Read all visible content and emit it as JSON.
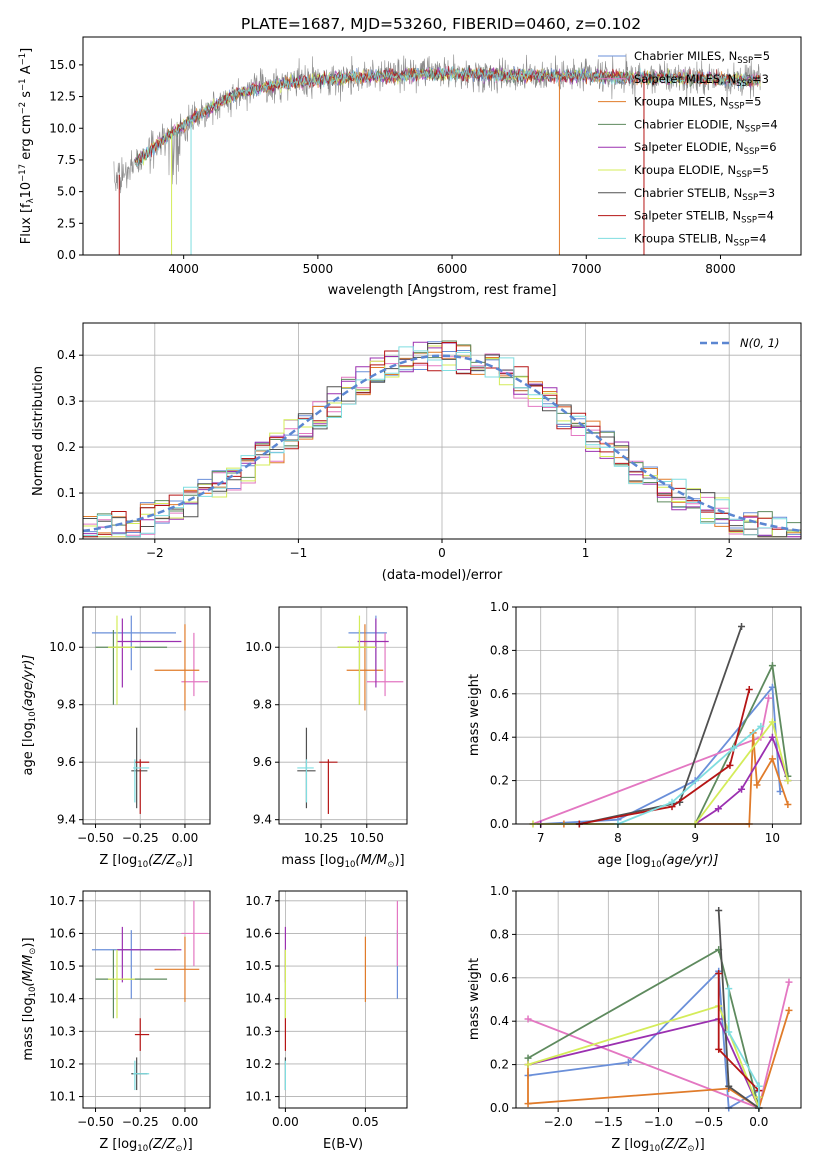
{
  "title": "PLATE=1687, MJD=53260, FIBERID=0460, z=0.102",
  "colors": {
    "chabrier_miles": "#6a8fd9",
    "salpeter_miles": "#e377c2",
    "kroupa_miles": "#e07b2a",
    "chabrier_elodie": "#5e8a5e",
    "salpeter_elodie": "#9b30b0",
    "kroupa_elodie": "#d4ec5a",
    "chabrier_stelib": "#505050",
    "salpeter_stelib": "#b51515",
    "kroupa_stelib": "#7fdde0",
    "normal": "#5b86d1",
    "grid": "#b0b0b0"
  },
  "legend": [
    {
      "key": "chabrier_miles",
      "label": "Chabrier MILES, N",
      "sub": "SSP",
      "tail": "=5"
    },
    {
      "key": "salpeter_miles",
      "label": "Salpeter MILES, N",
      "sub": "SSP",
      "tail": "=3"
    },
    {
      "key": "kroupa_miles",
      "label": "Kroupa MILES, N",
      "sub": "SSP",
      "tail": "=5"
    },
    {
      "key": "chabrier_elodie",
      "label": "Chabrier ELODIE, N",
      "sub": "SSP",
      "tail": "=4"
    },
    {
      "key": "salpeter_elodie",
      "label": "Salpeter ELODIE, N",
      "sub": "SSP",
      "tail": "=6"
    },
    {
      "key": "kroupa_elodie",
      "label": "Kroupa ELODIE, N",
      "sub": "SSP",
      "tail": "=5"
    },
    {
      "key": "chabrier_stelib",
      "label": "Chabrier STELIB, N",
      "sub": "SSP",
      "tail": "=3"
    },
    {
      "key": "salpeter_stelib",
      "label": "Salpeter STELIB, N",
      "sub": "SSP",
      "tail": "=4"
    },
    {
      "key": "kroupa_stelib",
      "label": "Kroupa STELIB, N",
      "sub": "SSP",
      "tail": "=4"
    }
  ],
  "chart_data": [
    {
      "id": "spectrum",
      "type": "line",
      "xlabel": "wavelength [Angstrom, rest frame]",
      "ylabel_main": "Flux [f",
      "ylabel_sub": "λ",
      "ylabel_rest": "10",
      "ylabel_exp": "−17",
      "ylabel_unit": " erg cm",
      "ylabel_unit_exp": "−2",
      "ylabel_s": " s",
      "ylabel_s_exp": "−1",
      "ylabel_A": " A",
      "ylabel_A_exp": "−1",
      "ylabel_close": "]",
      "xlim": [
        3250,
        8600
      ],
      "ylim": [
        0,
        17.2
      ],
      "xticks": [
        4000,
        5000,
        6000,
        7000,
        8000
      ],
      "yticks": [
        0.0,
        2.5,
        5.0,
        7.5,
        10.0,
        12.5,
        15.0
      ],
      "ytick_labels": [
        "0.0",
        "2.5",
        "5.0",
        "7.5",
        "10.0",
        "12.5",
        "15.0"
      ],
      "continuum": [
        [
          3480,
          6.0
        ],
        [
          3700,
          7.8
        ],
        [
          3900,
          9.5
        ],
        [
          4100,
          11.0
        ],
        [
          4400,
          12.8
        ],
        [
          4800,
          13.6
        ],
        [
          5200,
          14.0
        ],
        [
          5600,
          14.2
        ],
        [
          6000,
          14.3
        ],
        [
          6500,
          14.2
        ],
        [
          7000,
          14.1
        ],
        [
          7500,
          14.0
        ],
        [
          8000,
          13.9
        ],
        [
          8300,
          13.8
        ]
      ],
      "model_start": 3640,
      "model_end": 8300
    },
    {
      "id": "residuals",
      "type": "histogram",
      "xlabel": "(data-model)/error",
      "ylabel": "Normed distribution",
      "xlim": [
        -2.5,
        2.5
      ],
      "ylim": [
        0,
        0.47
      ],
      "xticks": [
        -2,
        -1,
        0,
        1,
        2
      ],
      "xtick_labels": [
        "−2",
        "−1",
        "0",
        "1",
        "2"
      ],
      "yticks": [
        0.0,
        0.1,
        0.2,
        0.3,
        0.4
      ],
      "ytick_labels": [
        "0.0",
        "0.1",
        "0.2",
        "0.3",
        "0.4"
      ],
      "bin_width": 0.1,
      "normal_label": "N(0, 1)"
    },
    {
      "id": "age_vs_Z",
      "type": "errorbar",
      "xlabel_pre": "Z [log",
      "xlabel_sub": "10",
      "xlabel_post": "(Z/Z",
      "xlabel_end": ")]",
      "ylabel_pre": "age  [log",
      "ylabel_sub": "10",
      "ylabel_post": "(age/yr)]",
      "xlim": [
        -0.57,
        0.14
      ],
      "ylim": [
        9.385,
        10.14
      ],
      "xticks": [
        -0.5,
        -0.25,
        0.0
      ],
      "xtick_labels": [
        "−0.50",
        "−0.25",
        "0.00"
      ],
      "yticks": [
        9.4,
        9.6,
        9.8,
        10.0
      ],
      "ytick_labels": [
        "9.4",
        "9.6",
        "9.8",
        "10.0"
      ]
    },
    {
      "id": "age_vs_mass",
      "type": "errorbar",
      "xlabel_pre": "mass [log",
      "xlabel_sub": "10",
      "xlabel_post": "(M/M",
      "xlabel_end": ")]",
      "xlim": [
        10.02,
        10.72
      ],
      "ylim": [
        9.385,
        10.14
      ],
      "xticks": [
        10.25,
        10.5
      ],
      "xtick_labels": [
        "10.25",
        "10.50"
      ],
      "yticks": [
        9.4,
        9.6,
        9.8,
        10.0
      ],
      "ytick_labels": [
        "9.4",
        "9.6",
        "9.8",
        "10.0"
      ]
    },
    {
      "id": "weight_vs_age",
      "type": "line",
      "xlabel_pre": "age  [log",
      "xlabel_sub": "10",
      "xlabel_post": "(age/yr)]",
      "ylabel": "mass weight",
      "xlim": [
        6.68,
        10.37
      ],
      "ylim": [
        0,
        1.0
      ],
      "xticks": [
        7,
        8,
        9,
        10
      ],
      "xtick_labels": [
        "7",
        "8",
        "9",
        "10"
      ],
      "yticks": [
        0.0,
        0.2,
        0.4,
        0.6,
        0.8,
        1.0
      ],
      "ytick_labels": [
        "0.0",
        "0.2",
        "0.4",
        "0.6",
        "0.8",
        "1.0"
      ],
      "series": [
        {
          "key": "chabrier_miles",
          "points": [
            [
              7.0,
              0.0
            ],
            [
              8.0,
              0.02
            ],
            [
              9.0,
              0.2
            ],
            [
              10.0,
              0.63
            ],
            [
              10.1,
              0.15
            ]
          ]
        },
        {
          "key": "salpeter_miles",
          "points": [
            [
              6.9,
              0.0
            ],
            [
              9.85,
              0.4
            ],
            [
              9.95,
              0.58
            ]
          ]
        },
        {
          "key": "kroupa_miles",
          "points": [
            [
              7.3,
              0.0
            ],
            [
              9.7,
              0.0
            ],
            [
              9.75,
              0.42
            ],
            [
              9.8,
              0.18
            ],
            [
              10.0,
              0.3
            ],
            [
              10.2,
              0.09
            ]
          ]
        },
        {
          "key": "chabrier_elodie",
          "points": [
            [
              7.0,
              0.0
            ],
            [
              9.0,
              0.0
            ],
            [
              10.0,
              0.73
            ],
            [
              10.2,
              0.22
            ]
          ]
        },
        {
          "key": "salpeter_elodie",
          "points": [
            [
              7.0,
              0.0
            ],
            [
              9.0,
              0.0
            ],
            [
              9.3,
              0.07
            ],
            [
              9.6,
              0.16
            ],
            [
              10.0,
              0.4
            ],
            [
              10.2,
              0.2
            ]
          ]
        },
        {
          "key": "kroupa_elodie",
          "points": [
            [
              6.9,
              0.0
            ],
            [
              9.0,
              0.0
            ],
            [
              10.0,
              0.47
            ],
            [
              10.2,
              0.2
            ]
          ]
        },
        {
          "key": "chabrier_stelib",
          "points": [
            [
              7.5,
              0.0
            ],
            [
              8.8,
              0.1
            ],
            [
              9.6,
              0.91
            ]
          ]
        },
        {
          "key": "salpeter_stelib",
          "points": [
            [
              7.5,
              0.0
            ],
            [
              8.7,
              0.08
            ],
            [
              9.45,
              0.27
            ],
            [
              9.7,
              0.62
            ]
          ]
        },
        {
          "key": "kroupa_stelib",
          "points": [
            [
              8.0,
              0.0
            ],
            [
              8.7,
              0.1
            ],
            [
              9.5,
              0.35
            ],
            [
              9.85,
              0.45
            ]
          ]
        }
      ]
    },
    {
      "id": "mass_vs_Z",
      "type": "errorbar",
      "xlabel_pre": "Z [log",
      "xlabel_sub": "10",
      "xlabel_post": "(Z/Z",
      "xlabel_end": ")]",
      "ylabel_pre": "mass [log",
      "ylabel_sub": "10",
      "ylabel_post": "(M/M",
      "ylabel_end": ")]",
      "xlim": [
        -0.57,
        0.14
      ],
      "ylim": [
        10.065,
        10.73
      ],
      "xticks": [
        -0.5,
        -0.25,
        0.0
      ],
      "xtick_labels": [
        "−0.50",
        "−0.25",
        "0.00"
      ],
      "yticks": [
        10.1,
        10.2,
        10.3,
        10.4,
        10.5,
        10.6,
        10.7
      ],
      "ytick_labels": [
        "10.1",
        "10.2",
        "10.3",
        "10.4",
        "10.5",
        "10.6",
        "10.7"
      ]
    },
    {
      "id": "mass_vs_ebv",
      "type": "errorbar",
      "xlabel": "E(B-V)",
      "xlim": [
        -0.004,
        0.076
      ],
      "ylim": [
        10.065,
        10.73
      ],
      "xticks": [
        0.0,
        0.05
      ],
      "xtick_labels": [
        "0.00",
        "0.05"
      ],
      "yticks": [
        10.1,
        10.2,
        10.3,
        10.4,
        10.5,
        10.6,
        10.7
      ],
      "ytick_labels": [
        "10.1",
        "10.2",
        "10.3",
        "10.4",
        "10.5",
        "10.6",
        "10.7"
      ]
    },
    {
      "id": "weight_vs_Z",
      "type": "line",
      "xlabel_pre": "Z [log",
      "xlabel_sub": "10",
      "xlabel_post": "(Z/Z",
      "xlabel_end": ")]",
      "ylabel": "mass weight",
      "xlim": [
        -2.42,
        0.42
      ],
      "ylim": [
        0,
        1.0
      ],
      "xticks": [
        -2.0,
        -1.5,
        -1.0,
        -0.5,
        0.0
      ],
      "xtick_labels": [
        "−2.0",
        "−1.5",
        "−1.0",
        "−0.5",
        "0.0"
      ],
      "yticks": [
        0.0,
        0.2,
        0.4,
        0.6,
        0.8,
        1.0
      ],
      "ytick_labels": [
        "0.0",
        "0.2",
        "0.4",
        "0.6",
        "0.8",
        "1.0"
      ],
      "series": [
        {
          "key": "chabrier_miles",
          "points": [
            [
              -2.3,
              0.15
            ],
            [
              -1.3,
              0.21
            ],
            [
              -0.4,
              0.63
            ],
            [
              -0.3,
              0.0
            ],
            [
              0.0,
              0.08
            ]
          ]
        },
        {
          "key": "salpeter_miles",
          "points": [
            [
              -2.3,
              0.41
            ],
            [
              0.0,
              0.0
            ],
            [
              0.3,
              0.58
            ]
          ]
        },
        {
          "key": "kroupa_miles",
          "points": [
            [
              -2.3,
              0.2
            ],
            [
              -2.3,
              0.02
            ],
            [
              -0.3,
              0.09
            ],
            [
              0.0,
              0.0
            ],
            [
              0.3,
              0.45
            ]
          ]
        },
        {
          "key": "chabrier_elodie",
          "points": [
            [
              -2.3,
              0.23
            ],
            [
              -0.4,
              0.73
            ],
            [
              0.0,
              0.0
            ],
            [
              0.0,
              0.1
            ]
          ]
        },
        {
          "key": "salpeter_elodie",
          "points": [
            [
              -2.3,
              0.2
            ],
            [
              -0.4,
              0.41
            ],
            [
              0.0,
              0.0
            ],
            [
              0.0,
              0.05
            ]
          ]
        },
        {
          "key": "kroupa_elodie",
          "points": [
            [
              -2.3,
              0.2
            ],
            [
              -0.4,
              0.47
            ],
            [
              0.0,
              0.0
            ],
            [
              0.0,
              0.05
            ]
          ]
        },
        {
          "key": "chabrier_stelib",
          "points": [
            [
              -0.4,
              0.91
            ],
            [
              -0.3,
              0.1
            ],
            [
              0.0,
              0.0
            ],
            [
              0.0,
              0.1
            ]
          ]
        },
        {
          "key": "salpeter_stelib",
          "points": [
            [
              -0.4,
              0.62
            ],
            [
              -0.4,
              0.27
            ],
            [
              0.0,
              0.08
            ],
            [
              0.0,
              0.0
            ]
          ]
        },
        {
          "key": "kroupa_stelib",
          "points": [
            [
              -0.3,
              0.55
            ],
            [
              -0.3,
              0.35
            ],
            [
              0.0,
              0.1
            ],
            [
              0.0,
              0.0
            ]
          ]
        }
      ]
    }
  ],
  "fits": [
    {
      "key": "chabrier_miles",
      "Z": -0.3,
      "Zerr": [
        0.22,
        0.25
      ],
      "age": 10.05,
      "ageErr": [
        0.13,
        0.06
      ],
      "mass": 10.55,
      "massErr": [
        0.15,
        0.06
      ],
      "ebv": 0.07,
      "ebvErr": 0.1
    },
    {
      "key": "salpeter_miles",
      "Z": 0.05,
      "Zerr": [
        0.07,
        0.08
      ],
      "age": 9.88,
      "ageErr": [
        0.05,
        0.17
      ],
      "mass": 10.6,
      "massErr": [
        0.1,
        0.1
      ],
      "ebv": 0.07,
      "ebvErr": 0.1
    },
    {
      "key": "kroupa_miles",
      "Z": 0.0,
      "Zerr": [
        0.17,
        0.08
      ],
      "age": 9.92,
      "ageErr": [
        0.14,
        0.16
      ],
      "mass": 10.49,
      "massErr": [
        0.1,
        0.1
      ],
      "ebv": 0.05,
      "ebvErr": 0.1
    },
    {
      "key": "chabrier_elodie",
      "Z": -0.4,
      "Zerr": [
        0.1,
        0.3
      ],
      "age": 10.0,
      "ageErr": [
        0.2,
        0.06
      ],
      "mass": 10.46,
      "massErr": [
        0.12,
        0.09
      ],
      "ebv": 0.0,
      "ebvErr": 0.1
    },
    {
      "key": "salpeter_elodie",
      "Z": -0.35,
      "Zerr": [
        0.03,
        0.33
      ],
      "age": 10.02,
      "ageErr": [
        0.16,
        0.08
      ],
      "mass": 10.55,
      "massErr": [
        0.1,
        0.07
      ],
      "ebv": 0.0,
      "ebvErr": 0.1
    },
    {
      "key": "kroupa_elodie",
      "Z": -0.38,
      "Zerr": [
        0.05,
        0.1
      ],
      "age": 10.0,
      "ageErr": [
        0.2,
        0.11
      ],
      "mass": 10.46,
      "massErr": [
        0.12,
        0.09
      ],
      "ebv": 0.0,
      "ebvErr": 0.15
    },
    {
      "key": "chabrier_stelib",
      "Z": -0.27,
      "Zerr": [
        0.03,
        0.06
      ],
      "age": 9.57,
      "ageErr": [
        0.13,
        0.15
      ],
      "mass": 10.17,
      "massErr": [
        0.05,
        0.05
      ],
      "ebv": 0.0,
      "ebvErr": 0.1
    },
    {
      "key": "salpeter_stelib",
      "Z": -0.25,
      "Zerr": [
        0.03,
        0.05
      ],
      "age": 9.6,
      "ageErr": [
        0.18,
        0.01
      ],
      "mass": 10.29,
      "massErr": [
        0.05,
        0.05
      ],
      "ebv": 0.0,
      "ebvErr": 0.1
    },
    {
      "key": "kroupa_stelib",
      "Z": -0.28,
      "Zerr": [
        0.01,
        0.08
      ],
      "age": 9.58,
      "ageErr": [
        0.12,
        0.03
      ],
      "mass": 10.17,
      "massErr": [
        0.05,
        0.04
      ],
      "ebv": 0.0,
      "ebvErr": 0.1
    }
  ]
}
